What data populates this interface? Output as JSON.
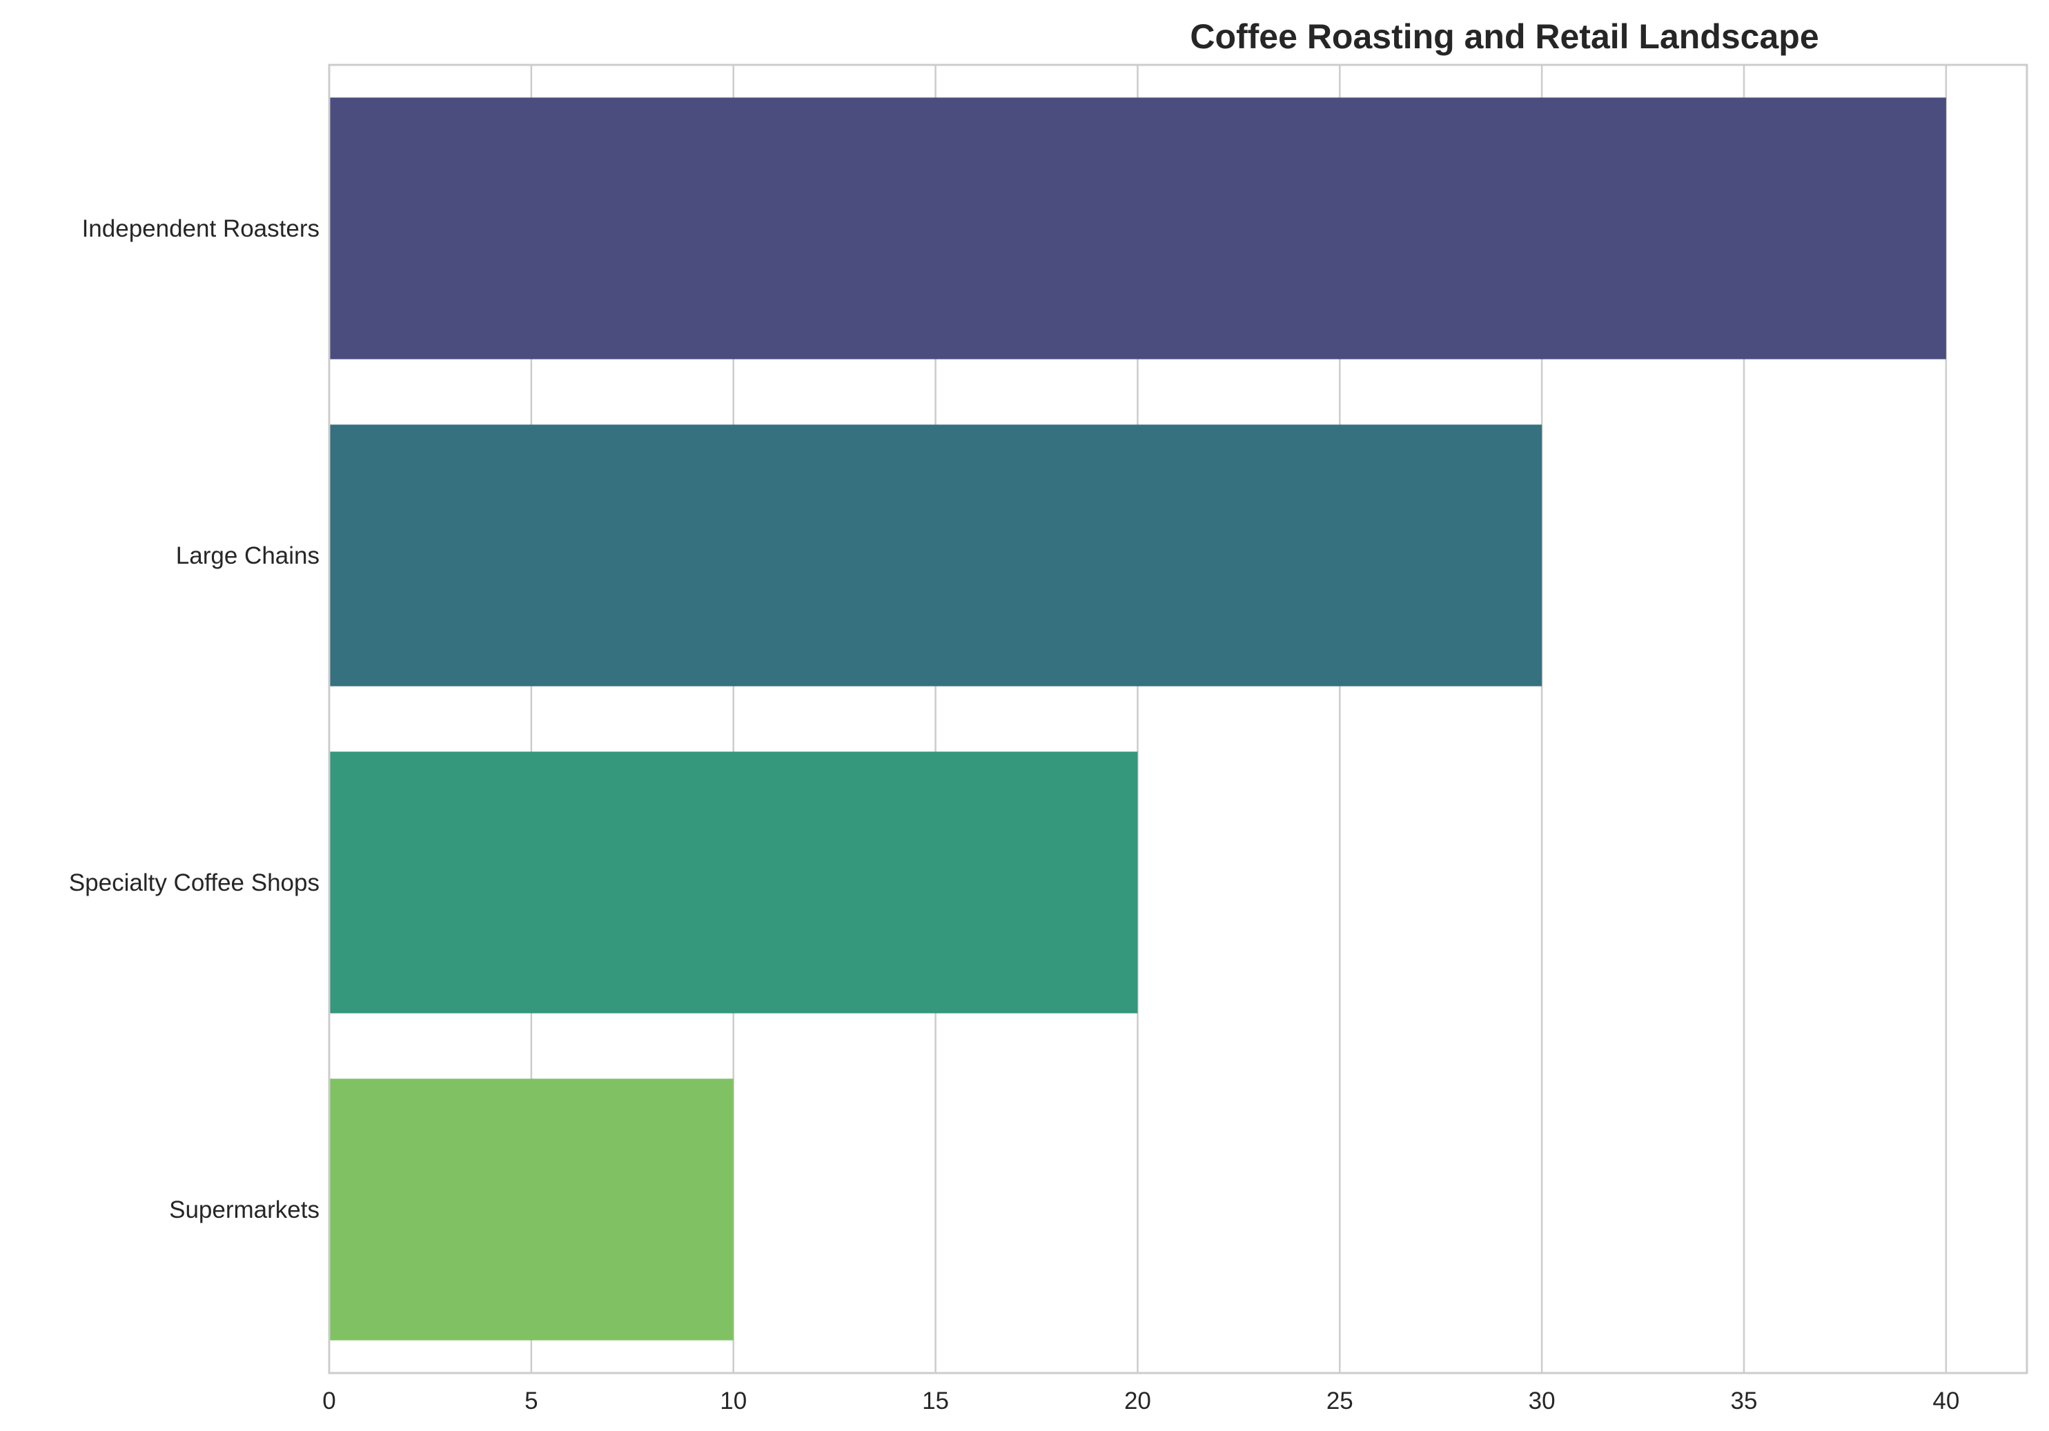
{
  "chart_data": {
    "type": "bar",
    "orientation": "horizontal",
    "title": "Coffee Roasting and Retail Landscape",
    "xlabel": "",
    "ylabel": "",
    "categories": [
      "Independent Roasters",
      "Large Chains",
      "Specialty Coffee Shops",
      "Supermarkets"
    ],
    "values": [
      40,
      30,
      20,
      10
    ],
    "colors": [
      "#4a4d7e",
      "#36717f",
      "#35977c",
      "#80c263"
    ],
    "xlim": [
      0,
      42
    ],
    "xticks": [
      0,
      5,
      10,
      15,
      20,
      25,
      30,
      35,
      40
    ],
    "grid": true,
    "legend": "none"
  }
}
